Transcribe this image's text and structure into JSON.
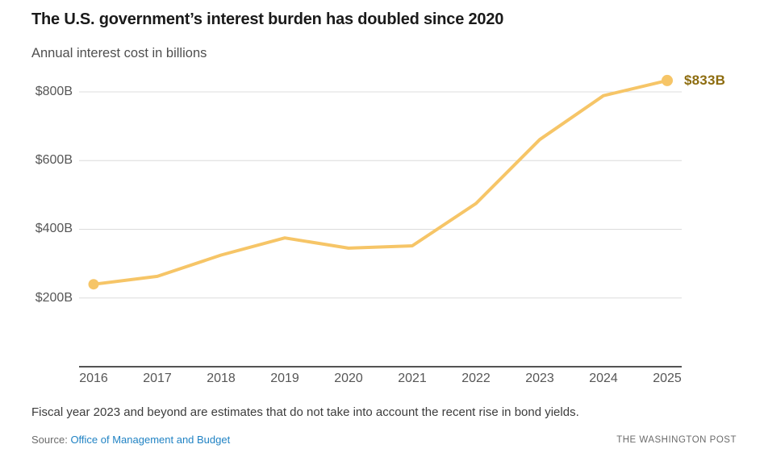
{
  "header": {
    "title": "The U.S. government’s interest burden has doubled since 2020",
    "subtitle": "Annual interest cost in billions"
  },
  "chart_data": {
    "type": "line",
    "title": "The U.S. government’s interest burden has doubled since 2020",
    "subtitle": "Annual interest cost in billions",
    "x": [
      2016,
      2017,
      2018,
      2019,
      2020,
      2021,
      2022,
      2023,
      2024,
      2025
    ],
    "x_tick_labels": [
      "2016",
      "2017",
      "2018",
      "2019",
      "2020",
      "2021",
      "2022",
      "2023",
      "2024",
      "2025"
    ],
    "series": [
      {
        "name": "Annual interest cost ($B)",
        "values": [
          240,
          263,
          325,
          375,
          345,
          352,
          475,
          661,
          789,
          833
        ]
      }
    ],
    "ylim": [
      0,
      850
    ],
    "y_ticks": [
      200,
      400,
      600,
      800
    ],
    "y_tick_labels": [
      "$200B",
      "$400B",
      "$600B",
      "$800B"
    ],
    "end_label": "$833B",
    "grid": "horizontal",
    "legend_position": "none",
    "line_color": "#f6c567",
    "end_label_color": "#8d6c0f",
    "axis_color": "#1a1a1a",
    "gridline_color": "#dcdcdc"
  },
  "footer": {
    "note": "Fiscal year 2023 and beyond are estimates that do not take into account the recent rise in bond yields.",
    "source_prefix": "Source:",
    "source_link": "Office of Management and Budget",
    "credit": "THE WASHINGTON POST"
  }
}
